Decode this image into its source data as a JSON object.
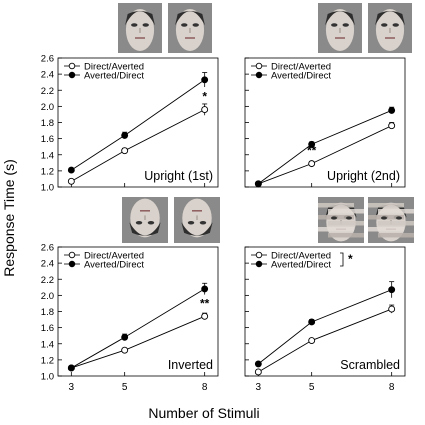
{
  "figure": {
    "y_axis_title": "Response Time (s)",
    "x_axis_title": "Number of Stimuli"
  },
  "chart_data": [
    {
      "type": "line",
      "panel_label": "Upright (1st)",
      "stimulus_images": [
        "face-direct-averted",
        "face-averted-direct"
      ],
      "x": [
        3,
        5,
        8
      ],
      "xticks": [
        "3",
        "5",
        "8"
      ],
      "ylim": [
        1.0,
        2.6
      ],
      "yticks": [
        "1.0",
        "1.2",
        "1.4",
        "1.6",
        "1.8",
        "2.0",
        "2.2",
        "2.4",
        "2.6"
      ],
      "legend": "top-left",
      "grid": false,
      "series": [
        {
          "name": "Direct/Averted",
          "marker": "open-circle",
          "values": [
            1.07,
            1.45,
            1.96
          ],
          "errors": [
            0.02,
            0.03,
            0.07
          ]
        },
        {
          "name": "Averted/Direct",
          "marker": "filled-circle",
          "values": [
            1.21,
            1.64,
            2.33
          ],
          "errors": [
            0.02,
            0.04,
            0.09
          ]
        }
      ],
      "significance": [
        {
          "x": 5,
          "label": "*"
        },
        {
          "x": 8,
          "label": "*"
        }
      ],
      "group_marker": ""
    },
    {
      "type": "line",
      "panel_label": "Upright (2nd)",
      "stimulus_images": [
        "face-direct-averted",
        "face-averted-direct"
      ],
      "x": [
        3,
        5,
        8
      ],
      "xticks": [
        "3",
        "5",
        "8"
      ],
      "ylim": [
        1.0,
        2.6
      ],
      "yticks": [
        "1.0",
        "1.2",
        "1.4",
        "1.6",
        "1.8",
        "2.0",
        "2.2",
        "2.4",
        "2.6"
      ],
      "legend": "top-left",
      "grid": false,
      "series": [
        {
          "name": "Direct/Averted",
          "marker": "open-circle",
          "values": [
            1.04,
            1.29,
            1.76
          ],
          "errors": [
            0.02,
            0.02,
            0.04
          ]
        },
        {
          "name": "Averted/Direct",
          "marker": "filled-circle",
          "values": [
            1.04,
            1.53,
            1.95
          ],
          "errors": [
            0.02,
            0.03,
            0.04
          ]
        }
      ],
      "significance": [
        {
          "x": 5,
          "label": "**"
        },
        {
          "x": 8,
          "label": "*"
        }
      ],
      "group_marker": ""
    },
    {
      "type": "line",
      "panel_label": "Inverted",
      "stimulus_images": [
        "face-inverted-direct-averted",
        "face-inverted-averted-direct"
      ],
      "x": [
        3,
        5,
        8
      ],
      "xticks": [
        "3",
        "5",
        "8"
      ],
      "ylim": [
        1.0,
        2.6
      ],
      "yticks": [
        "1.0",
        "1.2",
        "1.4",
        "1.6",
        "1.8",
        "2.0",
        "2.2",
        "2.4",
        "2.6"
      ],
      "legend": "top-left",
      "grid": false,
      "series": [
        {
          "name": "Direct/Averted",
          "marker": "open-circle",
          "values": [
            1.1,
            1.32,
            1.74
          ],
          "errors": [
            0.01,
            0.02,
            0.04
          ]
        },
        {
          "name": "Averted/Direct",
          "marker": "filled-circle",
          "values": [
            1.1,
            1.48,
            2.08
          ],
          "errors": [
            0.01,
            0.04,
            0.07
          ]
        }
      ],
      "significance": [
        {
          "x": 8,
          "label": "**"
        }
      ],
      "group_marker": ""
    },
    {
      "type": "line",
      "panel_label": "Scrambled",
      "stimulus_images": [
        "face-scrambled-direct-averted",
        "face-scrambled-averted-direct"
      ],
      "x": [
        3,
        5,
        8
      ],
      "xticks": [
        "3",
        "5",
        "8"
      ],
      "ylim": [
        1.0,
        2.6
      ],
      "yticks": [
        "1.0",
        "1.2",
        "1.4",
        "1.6",
        "1.8",
        "2.0",
        "2.2",
        "2.4",
        "2.6"
      ],
      "legend": "top-left",
      "grid": false,
      "series": [
        {
          "name": "Direct/Averted",
          "marker": "open-circle",
          "values": [
            1.05,
            1.44,
            1.83
          ],
          "errors": [
            0.02,
            0.02,
            0.05
          ]
        },
        {
          "name": "Averted/Direct",
          "marker": "filled-circle",
          "values": [
            1.15,
            1.67,
            2.07
          ],
          "errors": [
            0.02,
            0.03,
            0.1
          ]
        }
      ],
      "significance": [],
      "group_marker": "*"
    }
  ]
}
